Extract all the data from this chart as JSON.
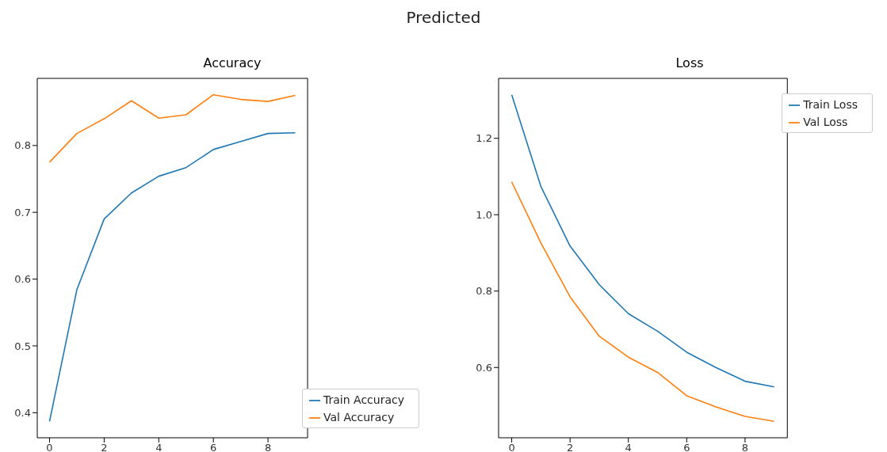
{
  "chart_data": [
    {
      "type": "other",
      "title": "Predicted"
    },
    {
      "type": "line",
      "title": "Accuracy",
      "x": [
        0,
        1,
        2,
        3,
        4,
        5,
        6,
        7,
        8,
        9
      ],
      "xlim": [
        -0.45,
        9.45
      ],
      "xticks": [
        0,
        2,
        4,
        6,
        8
      ],
      "ylim": [
        0.3625,
        0.9005
      ],
      "yticks": [
        0.4,
        0.5,
        0.6,
        0.7,
        0.8
      ],
      "grid": false,
      "legend": "bottom right",
      "series": [
        {
          "name": "Train Accuracy",
          "color": "#1f77b4",
          "values": [
            0.387,
            0.584,
            0.69,
            0.729,
            0.754,
            0.767,
            0.794,
            0.806,
            0.818,
            0.819
          ]
        },
        {
          "name": "Val Accuracy",
          "color": "#ff7f0e",
          "values": [
            0.775,
            0.818,
            0.84,
            0.867,
            0.841,
            0.846,
            0.876,
            0.869,
            0.866,
            0.875
          ]
        }
      ]
    },
    {
      "type": "line",
      "title": "Loss",
      "x": [
        0,
        1,
        2,
        3,
        4,
        5,
        6,
        7,
        8,
        9
      ],
      "xlim": [
        -0.45,
        9.45
      ],
      "xticks": [
        0,
        2,
        4,
        6,
        8
      ],
      "ylim": [
        0.416,
        1.357
      ],
      "yticks": [
        0.6,
        0.8,
        {
          "value": 1,
          "label": "1.0"
        },
        1.2
      ],
      "grid": false,
      "legend": "top right",
      "series": [
        {
          "name": "Train Loss",
          "color": "#1f77b4",
          "values": [
            1.314,
            1.074,
            0.918,
            0.817,
            0.741,
            0.695,
            0.64,
            0.6,
            0.564,
            0.549
          ]
        },
        {
          "name": "Val Loss",
          "color": "#ff7f0e",
          "values": [
            1.086,
            0.926,
            0.785,
            0.682,
            0.627,
            0.587,
            0.526,
            0.497,
            0.472,
            0.459
          ]
        }
      ]
    }
  ]
}
